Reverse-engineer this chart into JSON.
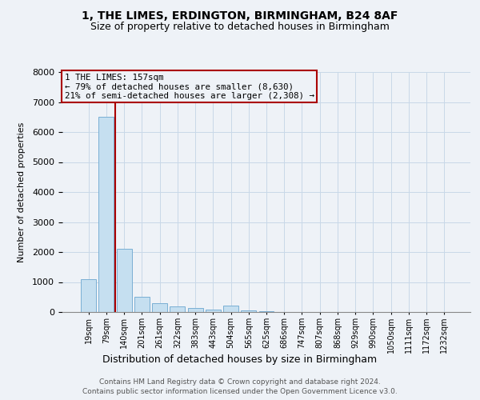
{
  "title1": "1, THE LIMES, ERDINGTON, BIRMINGHAM, B24 8AF",
  "title2": "Size of property relative to detached houses in Birmingham",
  "xlabel": "Distribution of detached houses by size in Birmingham",
  "ylabel": "Number of detached properties",
  "footer1": "Contains HM Land Registry data © Crown copyright and database right 2024.",
  "footer2": "Contains public sector information licensed under the Open Government Licence v3.0.",
  "annotation_line1": "1 THE LIMES: 157sqm",
  "annotation_line2": "← 79% of detached houses are smaller (8,630)",
  "annotation_line3": "21% of semi-detached houses are larger (2,308) →",
  "bar_color": "#c5dff0",
  "bar_edge_color": "#7aafd4",
  "grid_color": "#c8d8e8",
  "vline_color": "#aa0000",
  "vline_x": 1.5,
  "categories": [
    "19sqm",
    "79sqm",
    "140sqm",
    "201sqm",
    "261sqm",
    "322sqm",
    "383sqm",
    "443sqm",
    "504sqm",
    "565sqm",
    "625sqm",
    "686sqm",
    "747sqm",
    "807sqm",
    "868sqm",
    "929sqm",
    "990sqm",
    "1050sqm",
    "1111sqm",
    "1172sqm",
    "1232sqm"
  ],
  "values": [
    1100,
    6500,
    2100,
    500,
    300,
    200,
    130,
    80,
    210,
    60,
    20,
    10,
    5,
    3,
    2,
    2,
    1,
    1,
    1,
    1,
    1
  ],
  "ylim": [
    0,
    8000
  ],
  "yticks": [
    0,
    1000,
    2000,
    3000,
    4000,
    5000,
    6000,
    7000,
    8000
  ],
  "background_color": "#eef2f7",
  "title_fontsize": 10,
  "subtitle_fontsize": 9
}
